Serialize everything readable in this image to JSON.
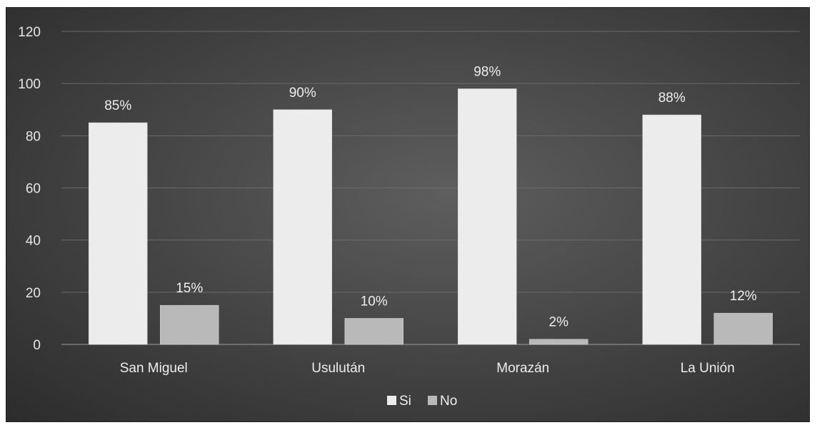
{
  "chart_data": {
    "type": "bar",
    "categories": [
      "San Miguel",
      "Usulután",
      "Morazán",
      "La Unión"
    ],
    "series": [
      {
        "name": "Si",
        "values": [
          85,
          90,
          98,
          88
        ],
        "labels": [
          "85%",
          "90%",
          "98%",
          "88%"
        ],
        "color": "#ececec"
      },
      {
        "name": "No",
        "values": [
          15,
          10,
          2,
          12
        ],
        "labels": [
          "15%",
          "10%",
          "2%",
          "12%"
        ],
        "color": "#b9b9b9"
      }
    ],
    "ylim": [
      0,
      120
    ],
    "yticks": [
      0,
      20,
      40,
      60,
      80,
      100,
      120
    ],
    "grid": true,
    "legend_position": "bottom",
    "background": "#4a4a4a",
    "title": "",
    "xlabel": "",
    "ylabel": ""
  }
}
